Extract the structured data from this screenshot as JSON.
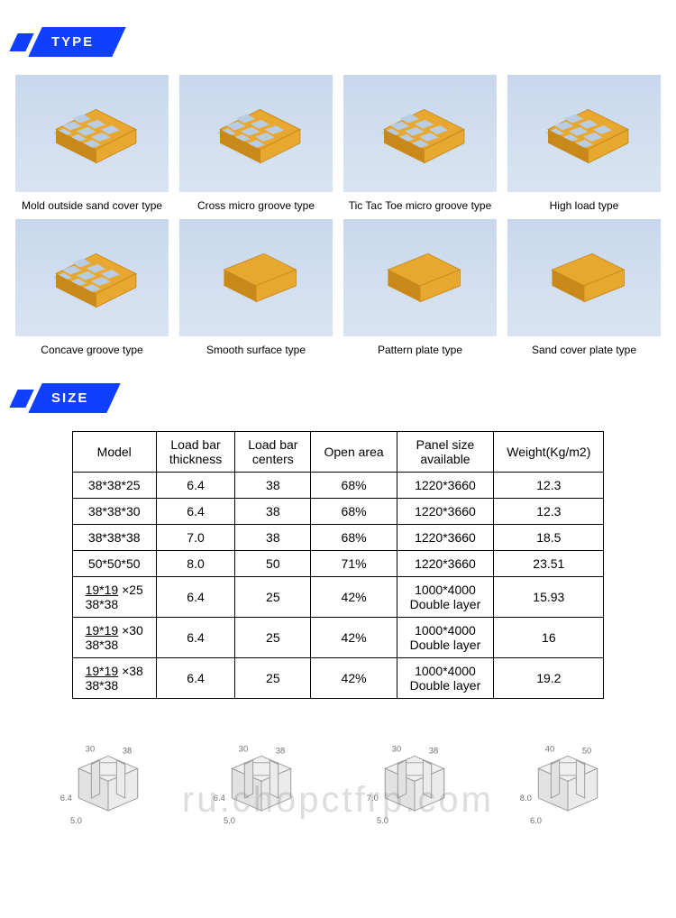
{
  "sections": {
    "type": "TYPE",
    "size": "SIZE"
  },
  "types": [
    {
      "label": "Mold outside sand cover type"
    },
    {
      "label": "Cross micro groove type"
    },
    {
      "label": "Tic Tac Toe micro groove type"
    },
    {
      "label": "High load type"
    },
    {
      "label": "Concave groove type"
    },
    {
      "label": "Smooth surface type"
    },
    {
      "label": "Pattern plate type"
    },
    {
      "label": "Sand cover plate type"
    }
  ],
  "table": {
    "headers": [
      "Model",
      "Load bar thickness",
      "Load bar centers",
      "Open area",
      "Panel size available",
      "Weight(Kg/m2)"
    ],
    "rows": [
      {
        "model": "38*38*25",
        "thickness": "6.4",
        "centers": "38",
        "open": "68%",
        "panel": "1220*3660",
        "weight": "12.3"
      },
      {
        "model": "38*38*30",
        "thickness": "6.4",
        "centers": "38",
        "open": "68%",
        "panel": "1220*3660",
        "weight": "12.3"
      },
      {
        "model": "38*38*38",
        "thickness": "7.0",
        "centers": "38",
        "open": "68%",
        "panel": "1220*3660",
        "weight": "18.5"
      },
      {
        "model": "50*50*50",
        "thickness": "8.0",
        "centers": "50",
        "open": "71%",
        "panel": "1220*3660",
        "weight": "23.51"
      }
    ],
    "frac_rows": [
      {
        "top": "19*19",
        "x": " ×25",
        "bot": "38*38",
        "thickness": "6.4",
        "centers": "25",
        "open": "42%",
        "panel1": "1000*4000",
        "panel2": "Double layer",
        "weight": "15.93"
      },
      {
        "top": "19*19",
        "x": " ×30",
        "bot": "38*38",
        "thickness": "6.4",
        "centers": "25",
        "open": "42%",
        "panel1": "1000*4000",
        "panel2": "Double layer",
        "weight": "16"
      },
      {
        "top": "19*19",
        "x": " ×38",
        "bot": "38*38",
        "thickness": "6.4",
        "centers": "25",
        "open": "42%",
        "panel1": "1000*4000",
        "panel2": "Double layer",
        "weight": "19.2"
      }
    ]
  },
  "diagrams": [
    {
      "w": "30",
      "p": "38",
      "t": "6.4",
      "d": "5.0"
    },
    {
      "w": "30",
      "p": "38",
      "t": "6.4",
      "d": "5.0"
    },
    {
      "w": "30",
      "p": "38",
      "t": "7.0",
      "d": "5.0"
    },
    {
      "w": "40",
      "p": "50",
      "t": "8.0",
      "d": "6.0"
    }
  ],
  "colors": {
    "header_bg": "#1040ff",
    "grating": "#e8a830",
    "grating_dark": "#c8881a",
    "tile_bg": "#d0ddee"
  },
  "watermark": "ru.chopctfrp.com"
}
